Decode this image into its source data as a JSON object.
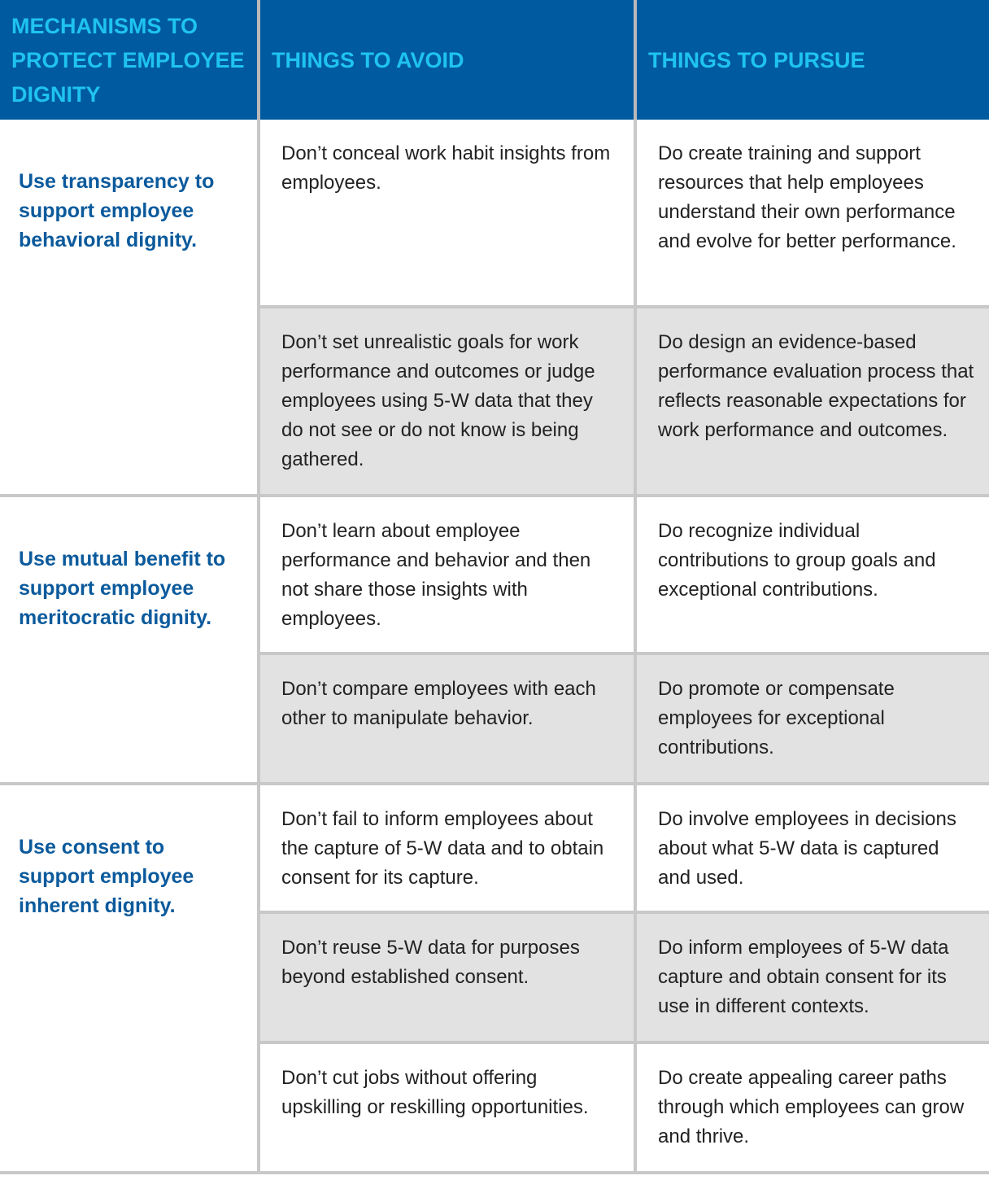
{
  "header": {
    "col1": "MECHANISMS TO PROTECT EMPLOYEE DIGNITY",
    "col2": "THINGS TO AVOID",
    "col3": "THINGS TO PURSUE"
  },
  "mechanisms": [
    "Use transparency to support employee behavioral dignity.",
    "Use mutual benefit to support employee meritocratic dignity.",
    "Use consent to support employee inherent dignity."
  ],
  "rows": [
    {
      "avoid": "Don’t conceal work habit insights from employees.",
      "pursue": "Do create training and support resources that help employees understand their own performance and evolve for better performance."
    },
    {
      "avoid": "Don’t set unrealistic goals for work performance and outcomes or judge employees using 5-W data that they do not see or do not know is being gathered.",
      "pursue": "Do design an evidence-based performance evaluation process that reflects reasonable expectations for work performance and outcomes."
    },
    {
      "avoid": "Don’t learn about employee performance and behavior and then not share those insights with employees.",
      "pursue": "Do recognize individual contributions to group goals and exceptional contributions."
    },
    {
      "avoid": "Don’t compare employees with each other to manipulate behavior.",
      "pursue": "Do promote or compensate employees for exceptional contributions."
    },
    {
      "avoid": "Don’t fail to inform employees about the capture of 5-W data and to obtain consent for its capture.",
      "pursue": "Do involve employees in decisions about what 5-W data is captured and used."
    },
    {
      "avoid": "Don’t reuse 5-W data for purposes beyond established consent.",
      "pursue": "Do inform employees of 5-W data capture and obtain consent for its use in different contexts."
    },
    {
      "avoid": "Don’t cut jobs without offering upskilling or reskilling opportunities.",
      "pursue": "Do create appealing career paths through which employees can grow and thrive."
    }
  ],
  "colors": {
    "header_bg": "#005aa0",
    "header_text": "#1fc3f0",
    "mechanism_text": "#0b5a9c",
    "row_alt_bg": "#e2e2e2"
  }
}
